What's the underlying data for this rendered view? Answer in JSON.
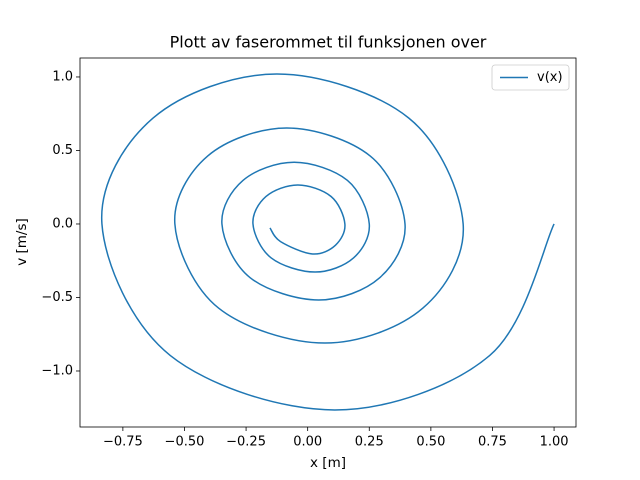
{
  "chart_data": {
    "type": "line",
    "title": "Plott av faserommet til funksjonen over",
    "x_label": "x [m]",
    "y_label": "v [m/s]",
    "x": [
      1.0,
      0.739,
      0.11,
      -0.558,
      -0.835,
      -0.627,
      -0.125,
      0.41,
      0.631,
      0.467,
      0.07,
      -0.361,
      -0.539,
      -0.406,
      -0.085,
      0.254,
      0.395,
      0.292,
      0.045,
      -0.233,
      -0.348,
      -0.262,
      -0.055,
      0.161,
      0.25,
      0.186,
      0.03,
      -0.148,
      -0.222,
      -0.169,
      -0.04,
      0.095,
      0.151,
      0.113,
      0.02,
      -0.11,
      -0.153
    ],
    "series": [
      {
        "name": "v(x)",
        "color": "#1f77b4",
        "values": [
          0,
          -0.894,
          -1.265,
          -0.894,
          0,
          0.721,
          1.02,
          0.721,
          0,
          -0.573,
          -0.81,
          -0.573,
          0,
          0.462,
          0.653,
          0.462,
          0,
          -0.366,
          -0.517,
          -0.366,
          0,
          0.297,
          0.42,
          0.297,
          0,
          -0.231,
          -0.327,
          -0.231,
          0,
          0.187,
          0.265,
          0.187,
          0,
          -0.144,
          -0.204,
          -0.12,
          -0.027
        ]
      }
    ],
    "xlim": [
      -0.924,
      1.089
    ],
    "ylim": [
      -1.381,
      1.129
    ],
    "xticks": [
      {
        "value": -0.75,
        "label": "−0.75"
      },
      {
        "value": -0.5,
        "label": "−0.50"
      },
      {
        "value": -0.25,
        "label": "−0.25"
      },
      {
        "value": 0,
        "label": "0.00"
      },
      {
        "value": 0.25,
        "label": "0.25"
      },
      {
        "value": 0.5,
        "label": "0.50"
      },
      {
        "value": 0.75,
        "label": "0.75"
      },
      {
        "value": 1.0,
        "label": "1.00"
      }
    ],
    "yticks": [
      {
        "value": -1.0,
        "label": "−1.0"
      },
      {
        "value": -0.5,
        "label": "−0.5"
      },
      {
        "value": 0,
        "label": "0.0"
      },
      {
        "value": 0.5,
        "label": "0.5"
      },
      {
        "value": 1.0,
        "label": "1.0"
      }
    ],
    "grid": false,
    "legend": "upper right"
  }
}
